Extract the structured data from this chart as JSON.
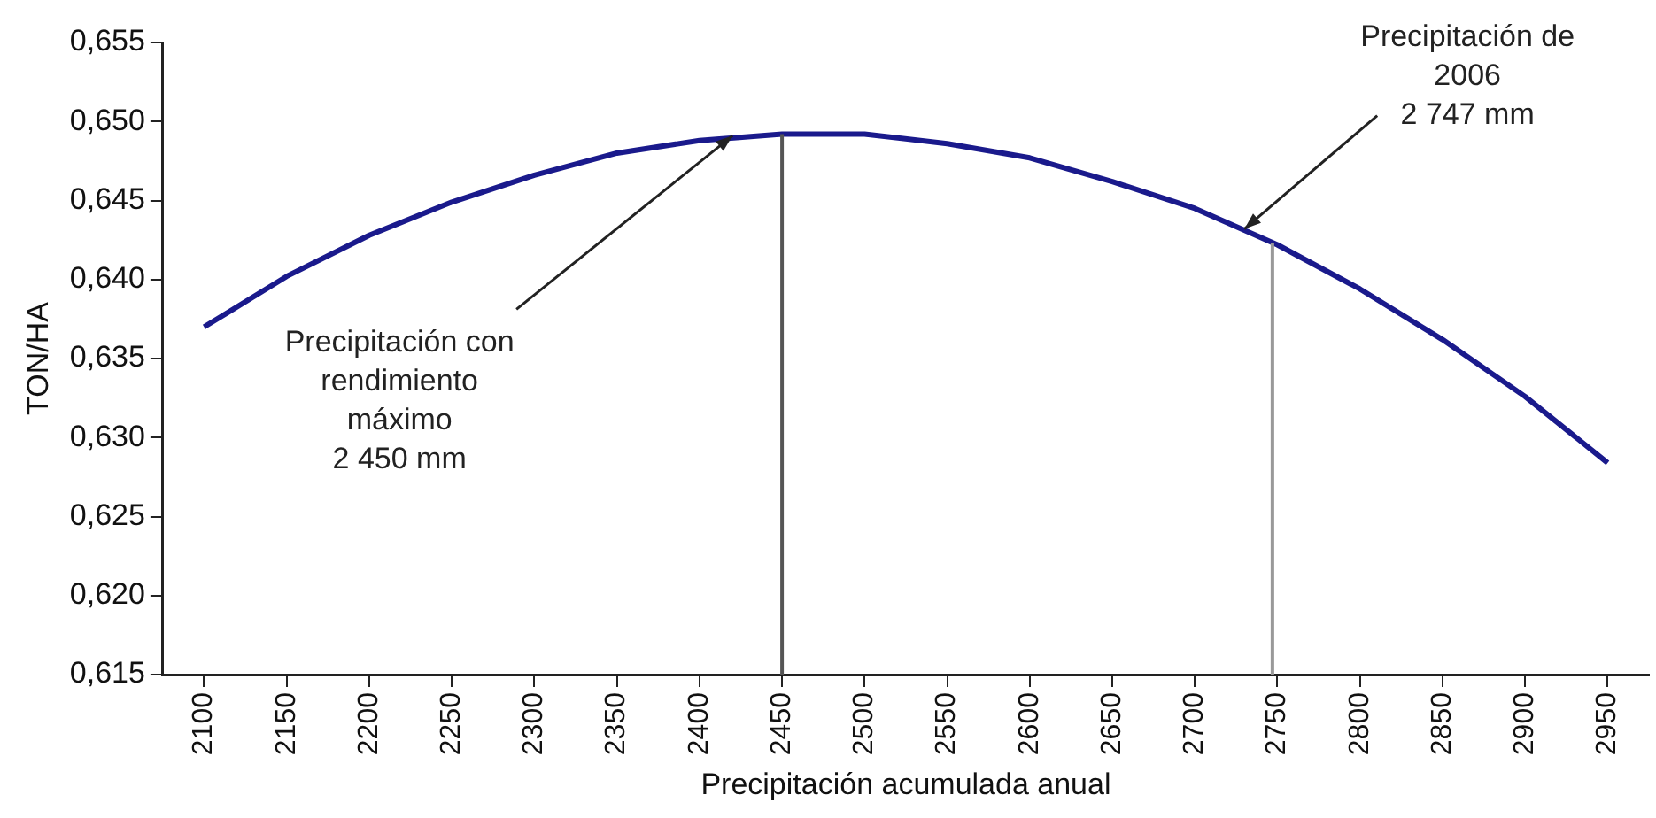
{
  "chart_data": {
    "type": "line",
    "xlabel": "Precipitación acumulada anual",
    "ylabel": "TON/HA",
    "x": [
      2100,
      2150,
      2200,
      2250,
      2300,
      2350,
      2400,
      2450,
      2500,
      2550,
      2600,
      2650,
      2700,
      2750,
      2800,
      2850,
      2900,
      2950
    ],
    "series": [
      {
        "color": "#1a1a8c",
        "values": [
          0.637,
          0.6402,
          0.6428,
          0.6449,
          0.6466,
          0.648,
          0.6488,
          0.6492,
          0.6492,
          0.6486,
          0.6477,
          0.6462,
          0.6445,
          0.6422,
          0.6394,
          0.6362,
          0.6326,
          0.6284
        ]
      }
    ],
    "xlim": [
      2075,
      2975
    ],
    "xticks": [
      2100,
      2150,
      2200,
      2250,
      2300,
      2350,
      2400,
      2450,
      2500,
      2550,
      2600,
      2650,
      2700,
      2750,
      2800,
      2850,
      2900,
      2950
    ],
    "ylim": [
      0.615,
      0.655
    ],
    "yticks": [
      {
        "value": 0.615,
        "label": "0,615"
      },
      {
        "value": 0.62,
        "label": "0,620"
      },
      {
        "value": 0.625,
        "label": "0,625"
      },
      {
        "value": 0.63,
        "label": "0,630"
      },
      {
        "value": 0.635,
        "label": "0,635"
      },
      {
        "value": 0.64,
        "label": "0,640"
      },
      {
        "value": 0.645,
        "label": "0,645"
      },
      {
        "value": 0.65,
        "label": "0,650"
      },
      {
        "value": 0.655,
        "label": "0,655"
      }
    ],
    "ref_lines": [
      {
        "axis": "x",
        "value": 2450,
        "color": "#555555"
      },
      {
        "axis": "x",
        "value": 2747,
        "color": "#999999"
      }
    ],
    "annotations": [
      {
        "text": "Precipitación con\nrendimiento\nmáximo\n2 450 mm",
        "x": 2420,
        "y": 0.6491
      },
      {
        "text": "Precipitación de\n2006\n2 747 mm",
        "x": 2730,
        "y": 0.6432
      }
    ],
    "grid": false,
    "legend": false,
    "marker": "none",
    "line_style": "solid"
  }
}
